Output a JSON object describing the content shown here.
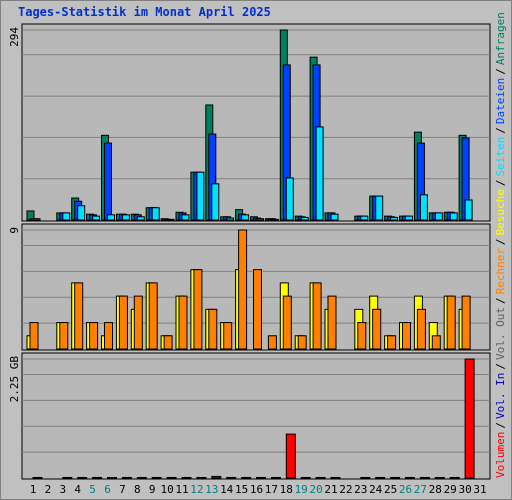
{
  "legend_separator": "/",
  "chart_data": [
    {
      "type": "bar",
      "title": "Tages-Statistik im Monat April 2025",
      "ylim": [
        0,
        294
      ],
      "yticks": [
        294
      ],
      "grid": true,
      "series": [
        {
          "name": "Seiten",
          "color": "#00e0ff",
          "values": [
            2,
            0,
            11,
            22,
            6,
            8,
            8,
            5,
            19,
            1,
            8,
            74,
            56,
            3,
            8,
            2,
            1,
            65,
            4,
            144,
            9,
            0,
            6,
            37,
            4,
            6,
            39,
            11,
            11,
            31,
            0
          ]
        },
        {
          "name": "Dateien",
          "color": "#0040ff",
          "values": [
            2,
            0,
            11,
            29,
            8,
            119,
            9,
            8,
            19,
            1,
            11,
            74,
            133,
            5,
            9,
            3,
            2,
            240,
            5,
            240,
            11,
            0,
            6,
            37,
            5,
            6,
            119,
            11,
            12,
            127,
            0
          ]
        },
        {
          "name": "Anfragen",
          "color": "#008060",
          "values": [
            14,
            0,
            11,
            34,
            9,
            131,
            9,
            9,
            19,
            2,
            12,
            74,
            178,
            5,
            16,
            5,
            2,
            294,
            6,
            252,
            11,
            0,
            6,
            37,
            6,
            6,
            136,
            11,
            12,
            131,
            0
          ]
        }
      ]
    },
    {
      "type": "bar",
      "ylim": [
        0,
        9
      ],
      "yticks": [
        9
      ],
      "grid": true,
      "series": [
        {
          "name": "Rechner",
          "color": "#ff8000",
          "values": [
            2,
            0,
            2,
            5,
            2,
            2,
            4,
            4,
            5,
            1,
            4,
            6,
            3,
            2,
            9,
            6,
            1,
            4,
            1,
            5,
            4,
            0,
            2,
            3,
            1,
            2,
            3,
            1,
            4,
            4,
            0
          ]
        },
        {
          "name": "Besuche",
          "color": "#ffff00",
          "values": [
            1,
            0,
            2,
            5,
            2,
            1,
            4,
            3,
            5,
            1,
            4,
            6,
            3,
            2,
            6,
            0,
            0,
            5,
            1,
            5,
            3,
            0,
            3,
            4,
            1,
            2,
            4,
            2,
            4,
            3,
            0
          ]
        }
      ]
    },
    {
      "type": "bar",
      "ylim": [
        0,
        2.25
      ],
      "yticks": [
        {
          "value": 2.25,
          "label": "2.25 GB"
        }
      ],
      "grid": true,
      "categories": [
        "1",
        "2",
        "3",
        "4",
        "5",
        "6",
        "7",
        "8",
        "9",
        "10",
        "11",
        "12",
        "13",
        "14",
        "15",
        "16",
        "17",
        "18",
        "19",
        "20",
        "21",
        "22",
        "23",
        "24",
        "25",
        "26",
        "27",
        "28",
        "29",
        "30",
        "31"
      ],
      "category_colors": [
        "#000000",
        "#000000",
        "#000000",
        "#000000",
        "#008080",
        "#008080",
        "#000000",
        "#000000",
        "#000000",
        "#000000",
        "#000000",
        "#008080",
        "#008080",
        "#000000",
        "#000000",
        "#000000",
        "#000000",
        "#000000",
        "#008080",
        "#008080",
        "#000000",
        "#000000",
        "#000000",
        "#000000",
        "#000000",
        "#008080",
        "#008080",
        "#000000",
        "#000000",
        "#000000",
        "#000000"
      ],
      "series": [
        {
          "name": "Volumen",
          "color": "#ff0000",
          "values": [
            0.01,
            0,
            0.01,
            0.01,
            0.01,
            0.01,
            0.01,
            0.01,
            0.01,
            0.01,
            0.01,
            0.01,
            0.03,
            0.01,
            0.01,
            0.01,
            0.01,
            0.83,
            0.01,
            0.01,
            0.01,
            0,
            0.01,
            0.01,
            0.01,
            0.01,
            0.01,
            0.01,
            0.01,
            2.25,
            0
          ]
        },
        {
          "name": "Vol. In",
          "color": "#0000c0"
        },
        {
          "name": "Vol. Out",
          "color": "#606060"
        }
      ]
    }
  ]
}
